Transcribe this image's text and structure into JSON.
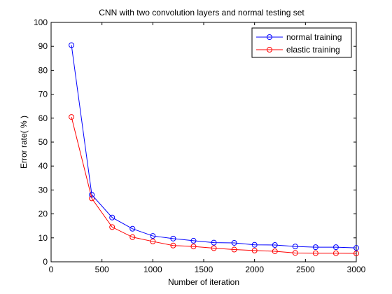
{
  "chart_data": {
    "type": "line",
    "title": "CNN with two convolution layers and normal testing set",
    "xlabel": "Number of iteration",
    "ylabel": "Error rate( % )",
    "xlim": [
      0,
      3000
    ],
    "ylim": [
      0,
      100
    ],
    "xticks": [
      0,
      500,
      1000,
      1500,
      2000,
      2500,
      3000
    ],
    "yticks": [
      0,
      10,
      20,
      30,
      40,
      50,
      60,
      70,
      80,
      90,
      100
    ],
    "grid": false,
    "legend_position": "top-right",
    "x": [
      200,
      400,
      600,
      800,
      1000,
      1200,
      1400,
      1600,
      1800,
      2000,
      2200,
      2400,
      2600,
      2800,
      3000
    ],
    "series": [
      {
        "name": "normal training",
        "color": "#0000ff",
        "marker": "circle",
        "values": [
          90.5,
          28.0,
          18.5,
          13.8,
          10.8,
          9.7,
          8.8,
          8.0,
          7.9,
          7.1,
          7.0,
          6.4,
          6.1,
          6.1,
          5.8
        ]
      },
      {
        "name": "elastic training",
        "color": "#ff0000",
        "marker": "circle",
        "values": [
          60.5,
          26.5,
          14.5,
          10.3,
          8.5,
          6.8,
          6.4,
          5.7,
          5.1,
          4.7,
          4.4,
          3.7,
          3.6,
          3.6,
          3.5
        ]
      }
    ]
  }
}
